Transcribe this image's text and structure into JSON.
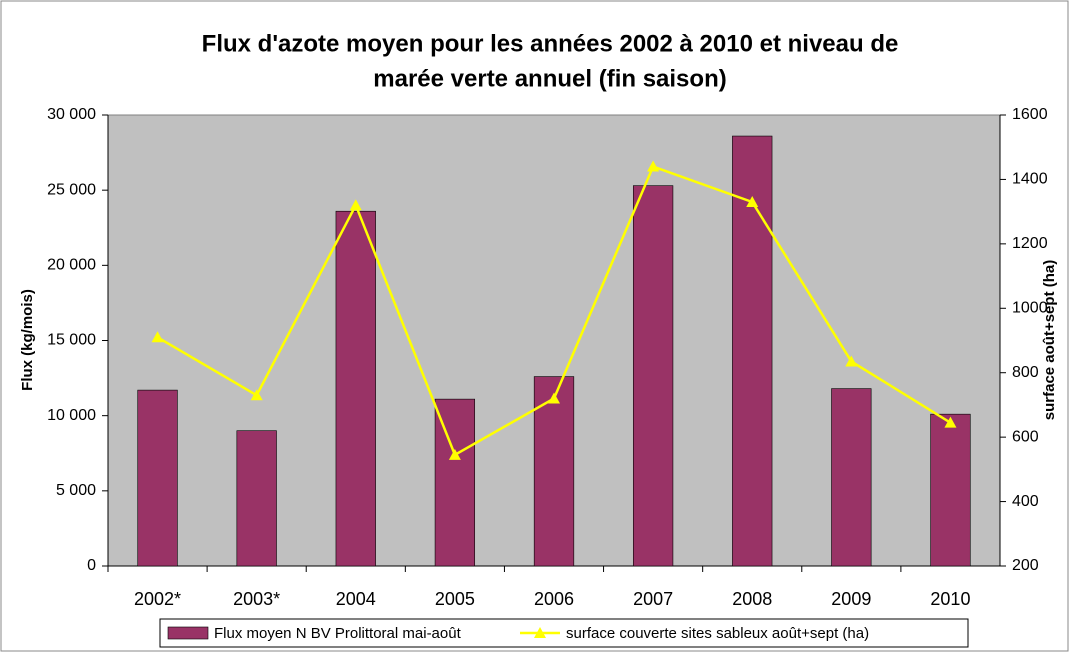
{
  "chart_data": {
    "type": "bar_line",
    "title": [
      "Flux d'azote moyen  pour les années 2002 à 2010  et niveau de",
      "marée verte annuel (fin saison)"
    ],
    "ylabel": "Flux (kg/mois)",
    "y2label": "surface août+sept (ha)",
    "categories": [
      "2002*",
      "2003*",
      "2004",
      "2005",
      "2006",
      "2007",
      "2008",
      "2009",
      "2010"
    ],
    "series": [
      {
        "name": "Flux moyen N BV Prolittoral mai-août",
        "color": "#993366",
        "type": "bar",
        "values": [
          11700,
          9000,
          23600,
          11100,
          12600,
          25300,
          28600,
          11800,
          10100
        ]
      },
      {
        "name": "surface couverte sites sableux août+sept (ha)",
        "color": "#ffff00",
        "type": "line",
        "axis": "y2",
        "values": [
          910,
          730,
          1320,
          545,
          720,
          1440,
          1330,
          835,
          645
        ]
      }
    ],
    "ylim": [
      0,
      30000
    ],
    "yticks": [
      {
        "value": 0,
        "label": "0"
      },
      {
        "value": 5000,
        "label": "5 000"
      },
      {
        "value": 10000,
        "label": "10 000"
      },
      {
        "value": 15000,
        "label": "15 000"
      },
      {
        "value": 20000,
        "label": "20 000"
      },
      {
        "value": 25000,
        "label": "25 000"
      },
      {
        "value": 30000,
        "label": "30 000"
      }
    ],
    "y2lim": [
      200,
      1600
    ],
    "y2ticks": [
      200,
      400,
      600,
      800,
      1000,
      1200,
      1400,
      1600
    ],
    "plot_background": "#c0c0c0",
    "grid": false,
    "legend": "bottom"
  }
}
